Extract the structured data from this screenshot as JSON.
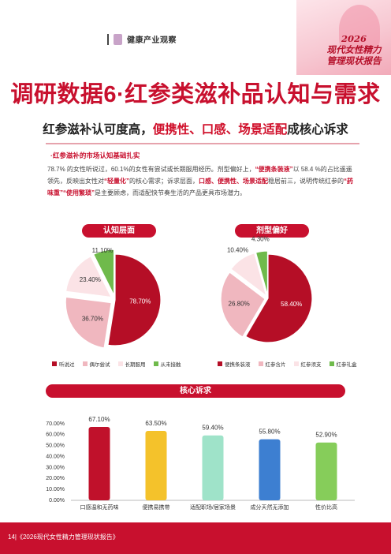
{
  "header": {
    "brand": "健康产业观察",
    "report_title_line1": "2026",
    "report_title_line2": "现代女性精力",
    "report_title_line3": "管理现状报告"
  },
  "main_title": "调研数据6·红参类滋补品认知与需求",
  "subtitle": {
    "prefix": "红参滋补认可度高，",
    "highlight": "便携性、口感、场景适配",
    "suffix": "成核心诉求"
  },
  "section": {
    "head": "·红参滋补的市场认知基础扎实",
    "p1": "78.7% 的女性听说过，60.1%的女性有尝试或长期服用经历。剂型偏好上，",
    "p2": "“便携条装液”",
    "p3": "以 58.4 %的占比遥遥领先，反映出女性对",
    "p4": "“轻量化”",
    "p5": "的核心需求；诉求层面，",
    "p6": "口感、便携性、场景适配",
    "p7": "稳居前三，说明传统红参的",
    "p8": "“药味重”“使用繁琐”",
    "p9": "是主要顾虑，而适配快节奏生活的产品更具市场潜力。"
  },
  "labels": {
    "pie1_title": "认知层面",
    "pie2_title": "剂型偏好",
    "bar_title": "核心诉求"
  },
  "footer": "14|《2026现代女性精力管理现状报告》",
  "chart_data": [
    {
      "type": "pie",
      "title": "认知层面",
      "categories": [
        "听说过",
        "偶尔尝试",
        "长期服用",
        "从未接触"
      ],
      "values": [
        78.7,
        36.7,
        23.4,
        11.1
      ],
      "labels": [
        "78.70%",
        "36.70%",
        "23.40%",
        "11.10%"
      ],
      "colors": [
        "#b50e26",
        "#f0b7bf",
        "#fbe3e6",
        "#6fba4b"
      ]
    },
    {
      "type": "pie",
      "title": "剂型偏好",
      "categories": [
        "便携条装液",
        "红参含片",
        "红参须支",
        "红参礼盒"
      ],
      "values": [
        58.4,
        26.8,
        10.4,
        4.3
      ],
      "labels": [
        "58.40%",
        "26.80%",
        "10.40%",
        "4.30%"
      ],
      "colors": [
        "#b50e26",
        "#f0b7bf",
        "#fbe3e6",
        "#6fba4b"
      ]
    },
    {
      "type": "bar",
      "title": "核心诉求",
      "categories": [
        "口感温和无药味",
        "便携易携带",
        "适配职场/居家场景",
        "成分天然无添加",
        "性价比高"
      ],
      "values": [
        67.1,
        63.5,
        59.4,
        55.8,
        52.9
      ],
      "labels": [
        "67.10%",
        "63.50%",
        "59.40%",
        "55.80%",
        "52.90%"
      ],
      "colors": [
        "#c0112b",
        "#f4c22b",
        "#9fe3c9",
        "#3d7fd1",
        "#86cd5a"
      ],
      "ylim": [
        0,
        70
      ],
      "yticks": [
        "0.00%",
        "10.00%",
        "20.00%",
        "30.00%",
        "40.00%",
        "50.00%",
        "60.00%",
        "70.00%"
      ],
      "grid": false
    }
  ]
}
